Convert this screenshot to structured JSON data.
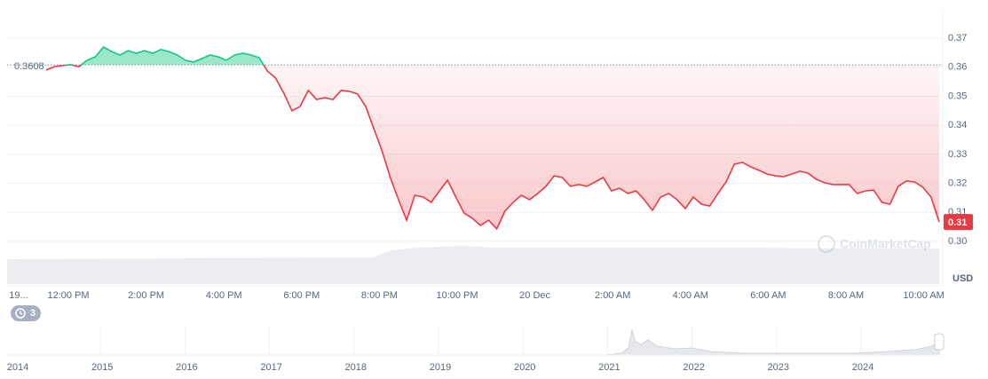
{
  "chart_data": {
    "type": "line",
    "baseline": 0.3608,
    "colors": {
      "above": "#16c784",
      "below": "#ea3943"
    },
    "values": [
      0.359,
      0.3602,
      0.3606,
      0.3609,
      0.3602,
      0.3624,
      0.3636,
      0.367,
      0.3654,
      0.3642,
      0.3657,
      0.3648,
      0.3657,
      0.3648,
      0.3661,
      0.3654,
      0.3642,
      0.3624,
      0.3618,
      0.363,
      0.3642,
      0.3636,
      0.3624,
      0.3642,
      0.3648,
      0.3642,
      0.3633,
      0.3587,
      0.3563,
      0.3511,
      0.345,
      0.3465,
      0.352,
      0.3489,
      0.3495,
      0.3489,
      0.352,
      0.3517,
      0.3508,
      0.3465,
      0.3388,
      0.3312,
      0.322,
      0.3144,
      0.3073,
      0.3159,
      0.3153,
      0.3135,
      0.3174,
      0.3211,
      0.3153,
      0.3098,
      0.308,
      0.3055,
      0.3073,
      0.3043,
      0.3104,
      0.3135,
      0.3159,
      0.3144,
      0.3165,
      0.319,
      0.3226,
      0.322,
      0.319,
      0.3196,
      0.319,
      0.3205,
      0.322,
      0.3174,
      0.3183,
      0.3165,
      0.3174,
      0.3144,
      0.3107,
      0.3153,
      0.3165,
      0.3144,
      0.3113,
      0.3153,
      0.3128,
      0.3122,
      0.3165,
      0.3205,
      0.3266,
      0.3272,
      0.3257,
      0.3245,
      0.3232,
      0.3226,
      0.3223,
      0.3232,
      0.3242,
      0.3235,
      0.3214,
      0.3202,
      0.3196,
      0.3196,
      0.3196,
      0.3165,
      0.3174,
      0.3177,
      0.3135,
      0.3128,
      0.319,
      0.3208,
      0.3205,
      0.3187,
      0.3153,
      0.3067
    ],
    "xtick_labels": [
      "19...",
      "12:00 PM",
      "2:00 PM",
      "4:00 PM",
      "6:00 PM",
      "8:00 PM",
      "10:00 PM",
      "20 Dec",
      "2:00 AM",
      "4:00 AM",
      "6:00 AM",
      "8:00 AM",
      "10:00 AM"
    ],
    "ylim": [
      0.2945,
      0.3801
    ],
    "yticks": [
      {
        "value": 0.3,
        "label": "0.30"
      },
      0.31,
      0.32,
      0.33,
      0.34,
      0.35,
      0.36,
      0.37
    ],
    "grid": true,
    "y_unit": "USD",
    "current_value_label": "0.31",
    "watermark": "CoinMarketCap",
    "history_badge": "3",
    "navigator_labels": [
      "2014",
      "2015",
      "2016",
      "2017",
      "2018",
      "2019",
      "2020",
      "2021",
      "2022",
      "2023",
      "2024"
    ]
  }
}
